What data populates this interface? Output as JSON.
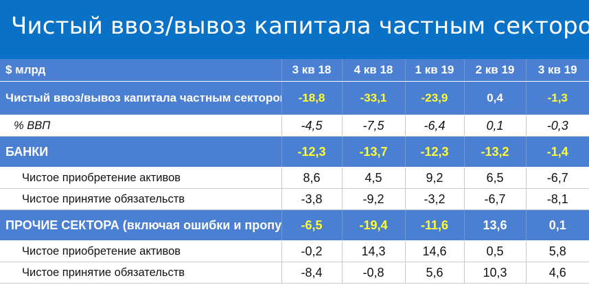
{
  "title": "Чистый ввоз/вывоз капитала частным сектором",
  "colors": {
    "title_bg": "#0a72c6",
    "row_blue": "#4a7fd2",
    "highlight": "#ffff33"
  },
  "table": {
    "header": [
      "$ млрд",
      "3 кв 18",
      "4 кв 18",
      "1 кв 19",
      "2 кв 19",
      "3 кв 19"
    ],
    "rows": [
      {
        "label": "Чистый ввоз/вывоз капитала частным сектором",
        "values": [
          "-18,8",
          "-33,1",
          "-23,9",
          "0,4",
          "-1,3"
        ]
      },
      {
        "label": "% ВВП",
        "values": [
          "-4,5",
          "-7,5",
          "-6,4",
          "0,1",
          "-0,3"
        ]
      },
      {
        "label": "БАНКИ",
        "values": [
          "-12,3",
          "-13,7",
          "-12,3",
          "-13,2",
          "-1,4"
        ]
      },
      {
        "label": "Чистое приобретение активов",
        "values": [
          "8,6",
          "4,5",
          "9,2",
          "6,5",
          "-6,7"
        ]
      },
      {
        "label": "Чистое принятие обязательств",
        "values": [
          "-3,8",
          "-9,2",
          "-3,2",
          "-6,7",
          "-8,1"
        ]
      },
      {
        "label": "ПРОЧИЕ СЕКТОРА (включая ошибки и пропуски)",
        "values": [
          "-6,5",
          "-19,4",
          "-11,6",
          "13,6",
          "0,1"
        ]
      },
      {
        "label": "Чистое приобретение активов",
        "values": [
          "-0,2",
          "14,3",
          "14,6",
          "0,5",
          "5,8"
        ]
      },
      {
        "label": "Чистое принятие обязательств",
        "values": [
          "-8,4",
          "-0,8",
          "5,6",
          "10,3",
          "4,6"
        ]
      }
    ]
  }
}
